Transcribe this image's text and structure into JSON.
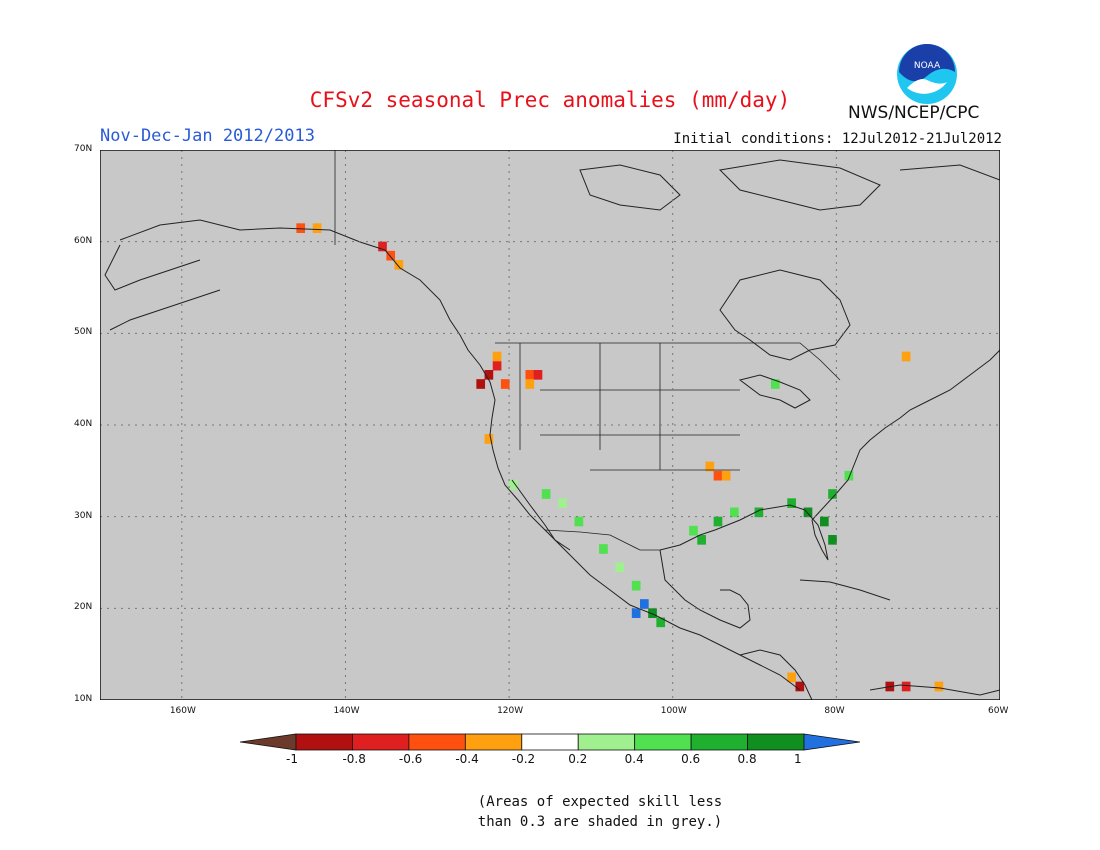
{
  "header": {
    "title": "CFSv2 seasonal Prec anomalies (mm/day)",
    "season": "Nov-Dec-Jan 2012/2013",
    "initial_conditions": "Initial conditions: 12Jul2012-21Jul2012",
    "organization": "NWS/NCEP/CPC",
    "logo_text": "NOAA"
  },
  "map": {
    "lat_labels": [
      "70N",
      "60N",
      "50N",
      "40N",
      "30N",
      "20N",
      "10N"
    ],
    "lon_labels": [
      "160W",
      "140W",
      "120W",
      "100W",
      "80W",
      "60W"
    ],
    "lat_range": [
      10,
      70
    ],
    "lon_range": [
      -170,
      -60
    ],
    "background_color": "#c8c8c8",
    "grid": true,
    "anomaly_cells": [
      {
        "lon": -146,
        "lat": 61,
        "v": -0.5
      },
      {
        "lon": -144,
        "lat": 61,
        "v": -0.3
      },
      {
        "lon": -136,
        "lat": 59,
        "v": -0.7
      },
      {
        "lon": -135,
        "lat": 58,
        "v": -0.5
      },
      {
        "lon": -134,
        "lat": 57,
        "v": -0.3
      },
      {
        "lon": -123,
        "lat": 45,
        "v": -0.9
      },
      {
        "lon": -124,
        "lat": 44,
        "v": -1.0
      },
      {
        "lon": -122,
        "lat": 46,
        "v": -0.7
      },
      {
        "lon": -122,
        "lat": 47,
        "v": -0.3
      },
      {
        "lon": -121,
        "lat": 44,
        "v": -0.5
      },
      {
        "lon": -118,
        "lat": 45,
        "v": -0.5
      },
      {
        "lon": -117,
        "lat": 45,
        "v": -0.7
      },
      {
        "lon": -118,
        "lat": 44,
        "v": -0.3
      },
      {
        "lon": -123,
        "lat": 38,
        "v": -0.3
      },
      {
        "lon": -96,
        "lat": 35,
        "v": -0.3
      },
      {
        "lon": -95,
        "lat": 34,
        "v": -0.5
      },
      {
        "lon": -94,
        "lat": 34,
        "v": -0.3
      },
      {
        "lon": -72,
        "lat": 47,
        "v": -0.3
      },
      {
        "lon": -85,
        "lat": 11,
        "v": -0.9
      },
      {
        "lon": -86,
        "lat": 12,
        "v": -0.3
      },
      {
        "lon": -74,
        "lat": 11,
        "v": -0.9
      },
      {
        "lon": -72,
        "lat": 11,
        "v": -0.7
      },
      {
        "lon": -68,
        "lat": 11,
        "v": -0.3
      },
      {
        "lon": -120,
        "lat": 33,
        "v": 0.3
      },
      {
        "lon": -116,
        "lat": 32,
        "v": 0.4
      },
      {
        "lon": -114,
        "lat": 31,
        "v": 0.3
      },
      {
        "lon": -112,
        "lat": 29,
        "v": 0.4
      },
      {
        "lon": -109,
        "lat": 26,
        "v": 0.5
      },
      {
        "lon": -107,
        "lat": 24,
        "v": 0.3
      },
      {
        "lon": -105,
        "lat": 22,
        "v": 0.5
      },
      {
        "lon": -104,
        "lat": 20,
        "v": 1.0
      },
      {
        "lon": -105,
        "lat": 19,
        "v": 1.0
      },
      {
        "lon": -103,
        "lat": 19,
        "v": 0.8
      },
      {
        "lon": -102,
        "lat": 18,
        "v": 0.7
      },
      {
        "lon": -98,
        "lat": 28,
        "v": 0.5
      },
      {
        "lon": -97,
        "lat": 27,
        "v": 0.7
      },
      {
        "lon": -95,
        "lat": 29,
        "v": 0.6
      },
      {
        "lon": -93,
        "lat": 30,
        "v": 0.5
      },
      {
        "lon": -90,
        "lat": 30,
        "v": 0.6
      },
      {
        "lon": -86,
        "lat": 31,
        "v": 0.7
      },
      {
        "lon": -84,
        "lat": 30,
        "v": 0.8
      },
      {
        "lon": -82,
        "lat": 29,
        "v": 0.8
      },
      {
        "lon": -81,
        "lat": 27,
        "v": 0.8
      },
      {
        "lon": -81,
        "lat": 32,
        "v": 0.6
      },
      {
        "lon": -79,
        "lat": 34,
        "v": 0.4
      },
      {
        "lon": -88,
        "lat": 44,
        "v": 0.4
      }
    ]
  },
  "colorbar": {
    "labels": [
      "-1",
      "-0.8",
      "-0.6",
      "-0.4",
      "-0.2",
      "0.2",
      "0.4",
      "0.6",
      "0.8",
      "1"
    ],
    "colors": [
      "#6b3a2a",
      "#b01010",
      "#e02020",
      "#ff5010",
      "#ffa010",
      "#ffffff",
      "#a0f090",
      "#50e050",
      "#20b030",
      "#108f20",
      "#2070e0"
    ]
  },
  "footnote": {
    "line1": "(Areas of expected skill less",
    "line2": "than 0.3 are shaded in grey.)"
  }
}
